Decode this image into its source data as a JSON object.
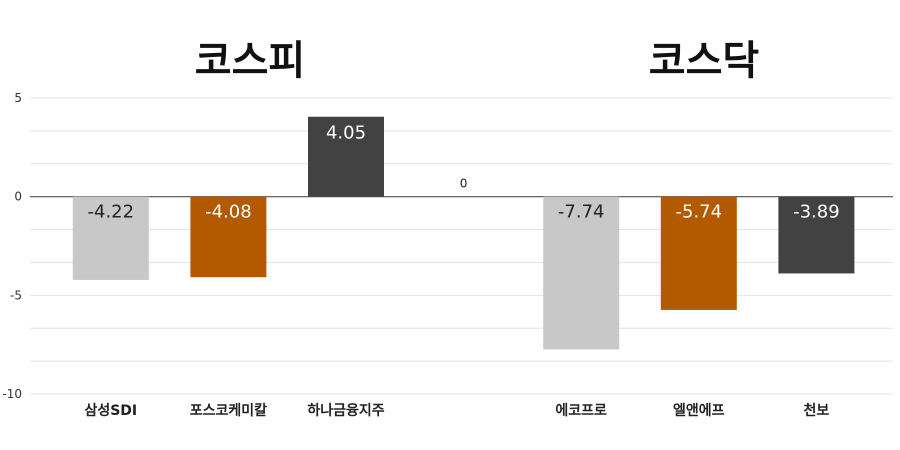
{
  "chart_data": {
    "type": "bar",
    "panels": [
      {
        "title": "코스피",
        "categories": [
          "삼성SDI",
          "포스코케미칼",
          "하나금융지주"
        ],
        "values": [
          -4.22,
          -4.08,
          4.05
        ]
      },
      {
        "title": "코스닥",
        "categories": [
          "에코프로",
          "엘앤에프",
          "천보"
        ],
        "values": [
          -7.74,
          -5.74,
          -3.89
        ]
      }
    ],
    "gap_label": "0",
    "ylim": [
      -10,
      5
    ],
    "yticks": [
      5,
      0,
      -5,
      -10
    ],
    "grid": true,
    "bar_colors": [
      "#c8c8c8",
      "#b35a00",
      "#424242"
    ],
    "legend": "none"
  }
}
